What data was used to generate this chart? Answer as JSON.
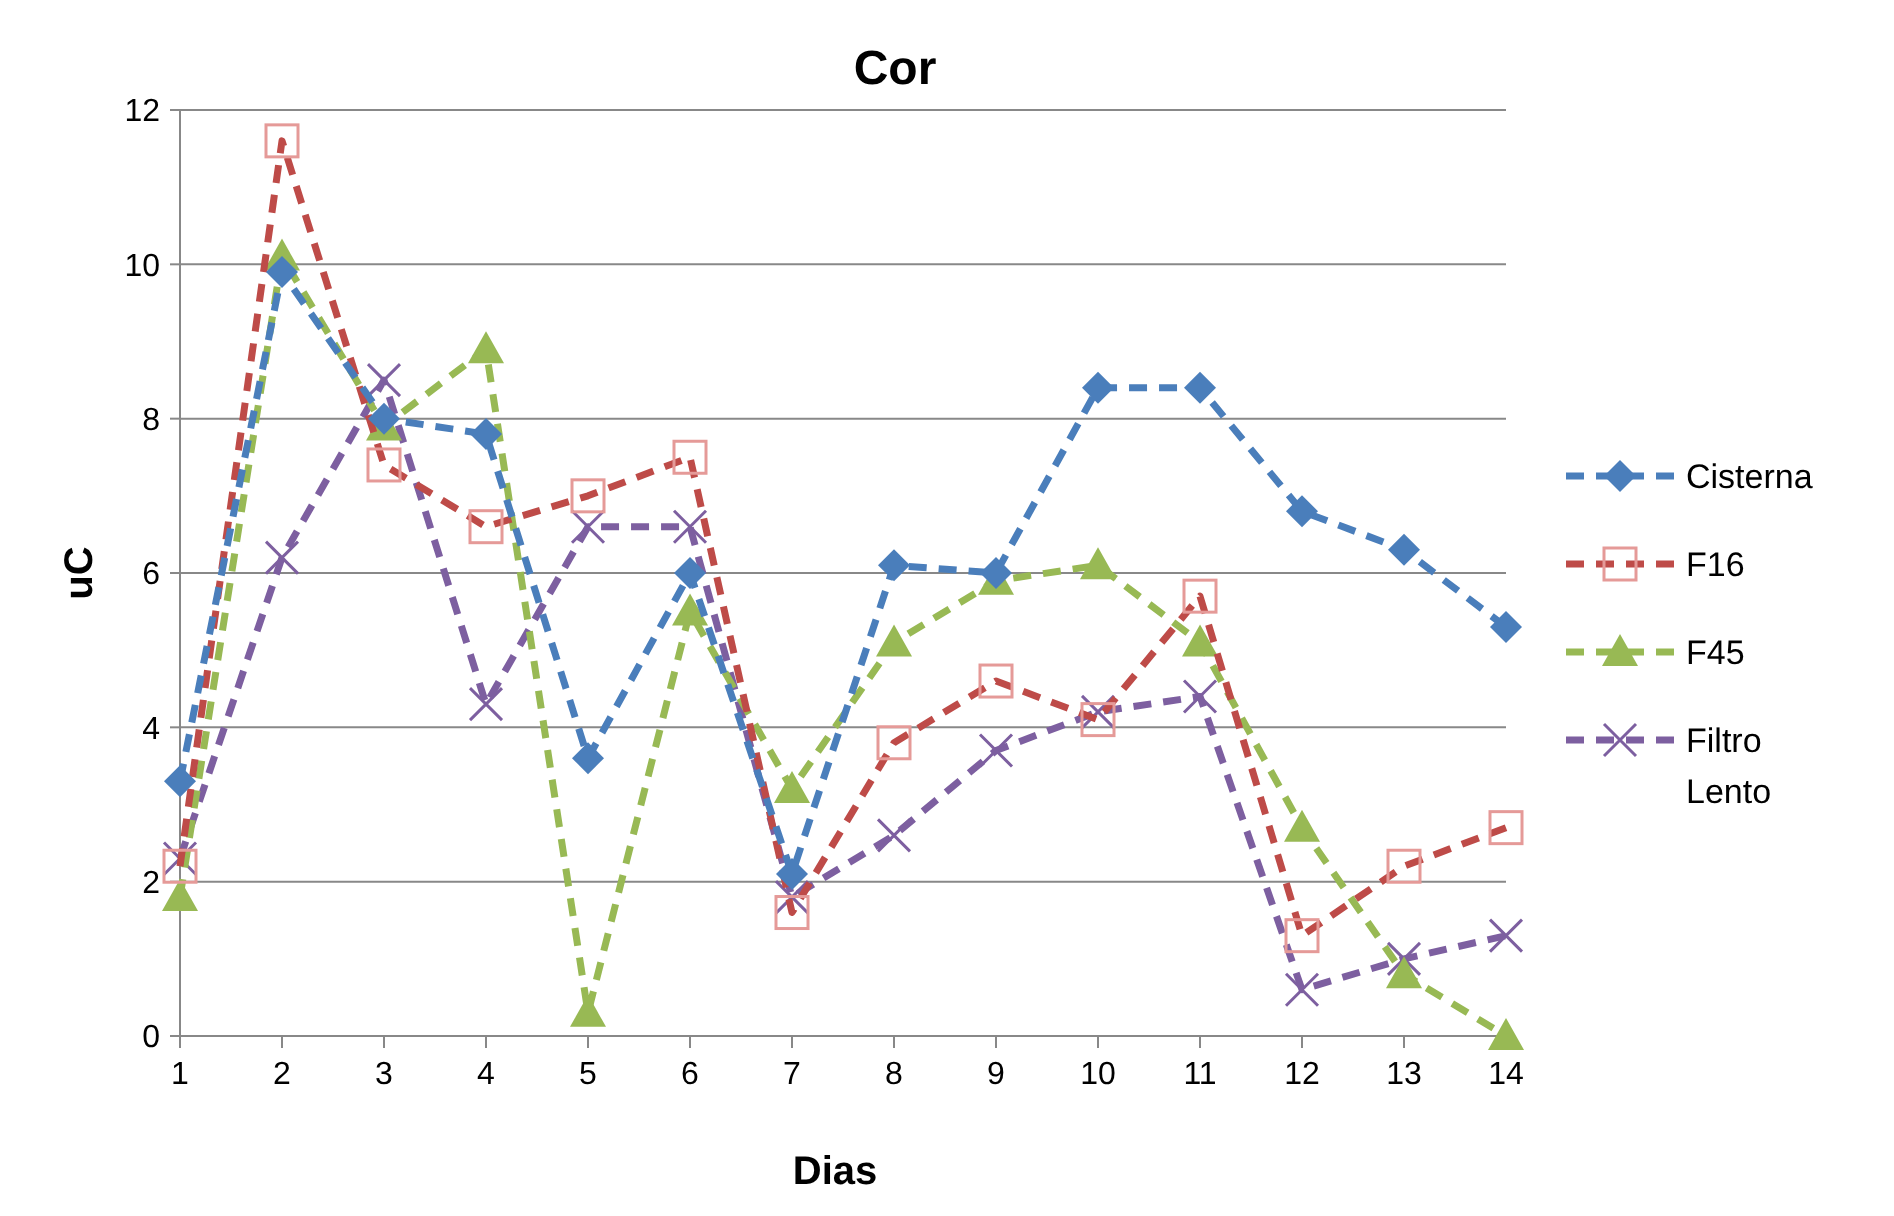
{
  "chart_data": {
    "type": "line",
    "title": "Cor",
    "xlabel": "Dias",
    "ylabel": "uC",
    "categories": [
      "1",
      "2",
      "3",
      "4",
      "5",
      "6",
      "7",
      "8",
      "9",
      "10",
      "11",
      "12",
      "13",
      "14"
    ],
    "ylim": [
      0,
      12
    ],
    "yticks": [
      0,
      2,
      4,
      6,
      8,
      10,
      12
    ],
    "grid": "y",
    "legend": "right",
    "line_style": "dashed",
    "series": [
      {
        "name": "Cisterna",
        "color": "#4a7ebb",
        "marker": "diamond",
        "values": [
          3.3,
          9.9,
          8.0,
          7.8,
          3.6,
          6.0,
          2.1,
          6.1,
          6.0,
          8.4,
          8.4,
          6.8,
          6.3,
          5.3
        ]
      },
      {
        "name": "F16",
        "color": "#be4b48",
        "marker": "square",
        "values": [
          2.2,
          11.6,
          7.4,
          6.6,
          7.0,
          7.5,
          1.6,
          3.8,
          4.6,
          4.1,
          5.7,
          1.3,
          2.2,
          2.7
        ]
      },
      {
        "name": "F45",
        "color": "#98b954",
        "marker": "triangle",
        "values": [
          1.8,
          10.1,
          7.9,
          8.9,
          0.3,
          5.5,
          3.2,
          5.1,
          5.9,
          6.1,
          5.1,
          2.7,
          0.8,
          0.0
        ]
      },
      {
        "name": "Filtro Lento",
        "color": "#7d5fa0",
        "marker": "cross",
        "values": [
          2.3,
          6.2,
          8.5,
          4.3,
          6.6,
          6.6,
          1.8,
          2.6,
          3.7,
          4.2,
          4.4,
          0.6,
          1.0,
          1.3
        ]
      }
    ]
  }
}
